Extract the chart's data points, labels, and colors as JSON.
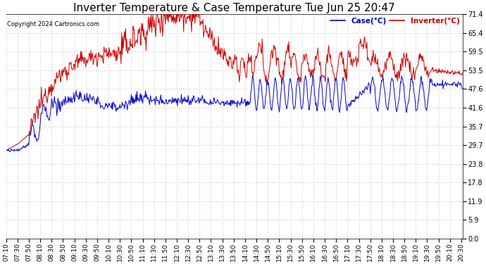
{
  "title": "Inverter Temperature & Case Temperature Tue Jun 25 20:47",
  "copyright": "Copyright 2024 Cartronics.com",
  "legend_case": "Case(°C)",
  "legend_inverter": "Inverter(°C)",
  "case_color": "#0000cc",
  "inverter_color": "#cc0000",
  "background_color": "#ffffff",
  "grid_color": "#cccccc",
  "ylim": [
    0.0,
    71.4
  ],
  "yticks": [
    0.0,
    5.9,
    11.9,
    17.8,
    23.8,
    29.7,
    35.7,
    41.6,
    47.6,
    53.5,
    59.5,
    65.4,
    71.4
  ],
  "title_fontsize": 11,
  "tick_fontsize": 7,
  "figsize": [
    6.9,
    3.75
  ],
  "dpi": 100,
  "x_tick_interval": 20
}
